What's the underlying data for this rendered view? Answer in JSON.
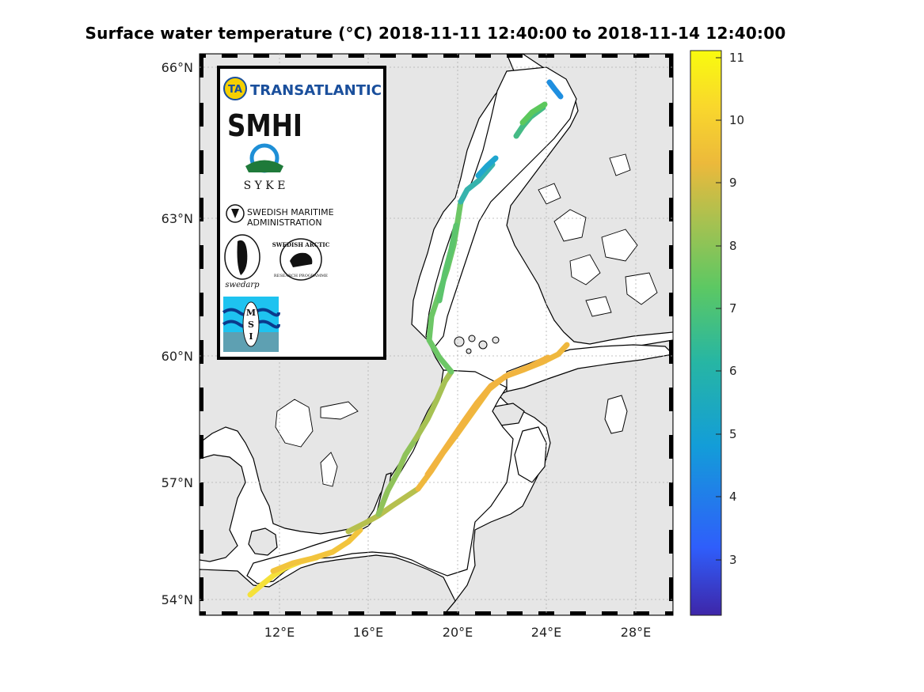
{
  "title": "Surface water temperature (°C)  2018-11-11 12:40:00  to  2018-11-14 12:40:00",
  "map": {
    "lat_ticks": [
      "66°N",
      "63°N",
      "60°N",
      "57°N",
      "54°N"
    ],
    "lon_ticks": [
      "12°E",
      "16°E",
      "20°E",
      "24°E",
      "28°E"
    ],
    "colorbar_ticks": [
      "11",
      "10",
      "9",
      "8",
      "7",
      "6",
      "5",
      "4",
      "3"
    ],
    "colormap": [
      "#3e26a8",
      "#2f5efb",
      "#139dd8",
      "#27b6a3",
      "#5cc863",
      "#a9c150",
      "#ecb93b",
      "#f9d72c",
      "#f9fb0e"
    ],
    "land_color": "#e6e6e6",
    "sea_color": "#ffffff"
  },
  "logos": {
    "transatlantic": "TRANSATLANTIC",
    "transatlantic_mark": "TA",
    "smhi": "SMHI",
    "syke": "S Y K E",
    "sma_line1": "SWEDISH MARITIME",
    "sma_line2": "ADMINISTRATION",
    "swedarp": "swedarp",
    "arctic": "SWEDISH ARCTIC",
    "arctic_sub": "RESEARCH PROGRAMME",
    "msi": [
      "M",
      "S",
      "I"
    ]
  }
}
